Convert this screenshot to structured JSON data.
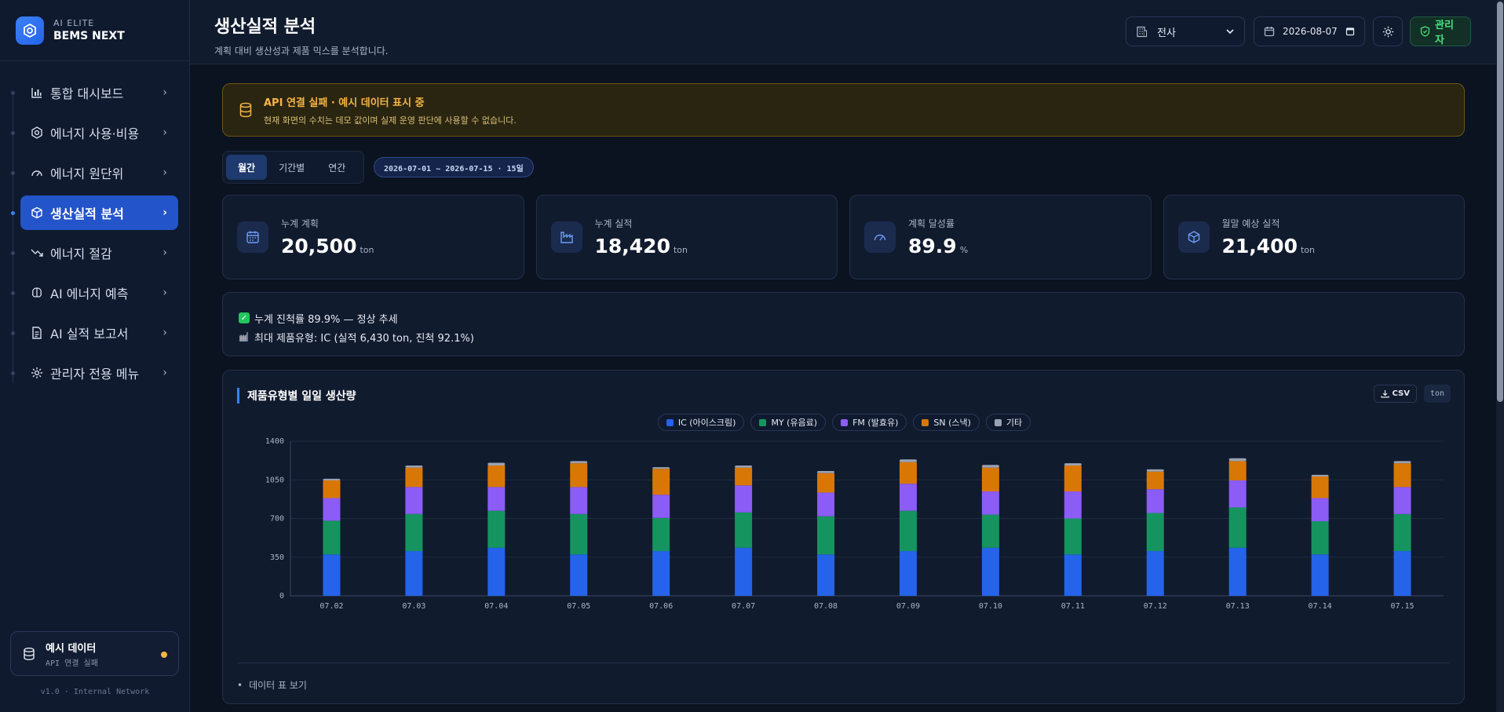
{
  "brand": {
    "sub": "AI ELITE",
    "name": "BEMS NEXT"
  },
  "nav": {
    "items": [
      {
        "label": "통합 대시보드",
        "icon": "bar-chart-icon"
      },
      {
        "label": "에너지 사용·비용",
        "icon": "hexagon-icon"
      },
      {
        "label": "에너지 원단위",
        "icon": "gauge-icon"
      },
      {
        "label": "생산실적 분석",
        "icon": "cube-icon",
        "active": true
      },
      {
        "label": "에너지 절감",
        "icon": "trending-down-icon"
      },
      {
        "label": "AI 에너지 예측",
        "icon": "brain-icon"
      },
      {
        "label": "AI 실적 보고서",
        "icon": "document-icon"
      },
      {
        "label": "관리자 전용 메뉴",
        "icon": "gear-icon"
      }
    ]
  },
  "demo": {
    "title": "예시 데이터",
    "sub": "API 연결 실패"
  },
  "version": "v1.0 · Internal Network",
  "header": {
    "title": "생산실적 분석",
    "subtitle": "계획 대비 생산성과 제품 믹스를 분석합니다.",
    "site_select": "전사",
    "date_value": "2026-08-07",
    "admin_label": "관리자"
  },
  "alert": {
    "title": "API 연결 실패 · 예시 데이터 표시 중",
    "desc": "현재 화면의 수치는 데모 값이며 실제 운영 판단에 사용할 수 없습니다."
  },
  "period_tabs": [
    "월간",
    "기간별",
    "연간"
  ],
  "range_label": "2026-07-01 ~ 2026-07-15 · 15일",
  "kpis": [
    {
      "label": "누계 계획",
      "value": "20,500",
      "unit": "ton",
      "icon": "calendar-icon"
    },
    {
      "label": "누계 실적",
      "value": "18,420",
      "unit": "ton",
      "icon": "factory-icon"
    },
    {
      "label": "계획 달성률",
      "value": "89.9",
      "unit": "%",
      "icon": "gauge-icon"
    },
    {
      "label": "월말 예상 실적",
      "value": "21,400",
      "unit": "ton",
      "icon": "cube-icon"
    }
  ],
  "notes": [
    "누계 진척률 89.9% — 정상 추세",
    "최대 제품유형: IC (실적 6,430 ton, 진척 92.1%)"
  ],
  "chart_card": {
    "title": "제품유형별 일일 생산량",
    "csv_label": "CSV",
    "unit_label": "ton",
    "table_toggle": "데이터 표 보기"
  },
  "colors": {
    "IC": "#2563eb",
    "MY": "#16945f",
    "FM": "#8b5cf6",
    "SN": "#d97706",
    "OTHER": "#9aa3b2",
    "accent": "#3b82f6"
  },
  "chart_data": {
    "type": "bar",
    "stacked": true,
    "categories": [
      "07.02",
      "07.03",
      "07.04",
      "07.05",
      "07.06",
      "07.07",
      "07.08",
      "07.09",
      "07.10",
      "07.11",
      "07.12",
      "07.13",
      "07.14",
      "07.15"
    ],
    "series": [
      {
        "name": "IC (아이스크림)",
        "values": [
          375,
          405,
          435,
          375,
          405,
          435,
          375,
          405,
          435,
          375,
          405,
          435,
          375,
          405
        ]
      },
      {
        "name": "MY (유음료)",
        "values": [
          305,
          335,
          335,
          365,
          300,
          320,
          345,
          365,
          300,
          325,
          345,
          365,
          300,
          335
        ]
      },
      {
        "name": "FM (발효유)",
        "values": [
          205,
          245,
          215,
          245,
          210,
          245,
          215,
          245,
          210,
          245,
          215,
          245,
          210,
          245
        ]
      },
      {
        "name": "SN (스낵)",
        "values": [
          160,
          175,
          195,
          215,
          235,
          160,
          175,
          195,
          215,
          235,
          160,
          175,
          195,
          215
        ]
      },
      {
        "name": "기타",
        "values": [
          15,
          20,
          25,
          20,
          15,
          20,
          20,
          25,
          25,
          20,
          20,
          25,
          15,
          20
        ]
      }
    ],
    "yticks": [
      "0",
      "350",
      "700",
      "1050",
      "1400"
    ],
    "ylim": [
      0,
      1400
    ],
    "grid": true,
    "legend": "top-center"
  }
}
